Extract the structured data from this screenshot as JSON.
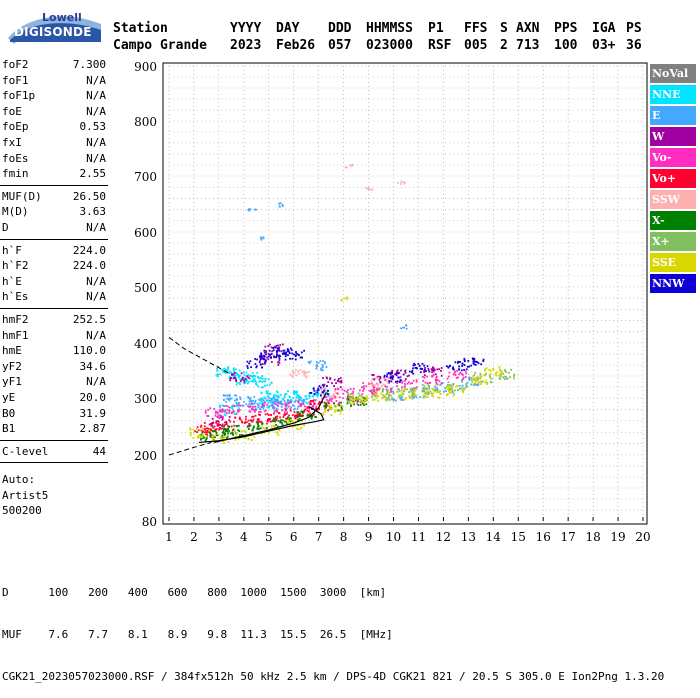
{
  "logo": {
    "line1": "Lowell",
    "line2": "DIGISONDE"
  },
  "header": {
    "row1": [
      "Station",
      "YYYY",
      "DAY",
      "DDD",
      "HHMMSS",
      "P1",
      "FFS",
      "S",
      "AXN",
      "PPS",
      "IGA",
      "PS"
    ],
    "row2": [
      "Campo Grande",
      "2023",
      "Feb26",
      "057",
      "023000",
      "RSF",
      "005",
      "2",
      "713",
      "100",
      "03+",
      "36"
    ]
  },
  "params": [
    {
      "name": "foF2",
      "value": "7.300"
    },
    {
      "name": "foF1",
      "value": "N/A"
    },
    {
      "name": "foF1p",
      "value": "N/A"
    },
    {
      "name": "foE",
      "value": "N/A"
    },
    {
      "name": "foEp",
      "value": "0.53"
    },
    {
      "name": "fxI",
      "value": "N/A"
    },
    {
      "name": "foEs",
      "value": "N/A"
    },
    {
      "name": "fmin",
      "value": "2.55"
    },
    {
      "name": "MUF(D)",
      "value": "26.50"
    },
    {
      "name": "M(D)",
      "value": "3.63"
    },
    {
      "name": "D",
      "value": "N/A"
    },
    {
      "name": "h`F",
      "value": "224.0"
    },
    {
      "name": "h`F2",
      "value": "224.0"
    },
    {
      "name": "h`E",
      "value": "N/A"
    },
    {
      "name": "h`Es",
      "value": "N/A"
    },
    {
      "name": "hmF2",
      "value": "252.5"
    },
    {
      "name": "hmF1",
      "value": "N/A"
    },
    {
      "name": "hmE",
      "value": "110.0"
    },
    {
      "name": "yF2",
      "value": "34.6"
    },
    {
      "name": "yF1",
      "value": "N/A"
    },
    {
      "name": "yE",
      "value": "20.0"
    },
    {
      "name": "B0",
      "value": "31.9"
    },
    {
      "name": "B1",
      "value": "2.87"
    },
    {
      "name": "C-level",
      "value": "44"
    }
  ],
  "auto": {
    "line1": "Auto:",
    "line2": "Artist5",
    "line3": "500200"
  },
  "legend": [
    {
      "label": "NoVal",
      "color": "#808080"
    },
    {
      "label": "NNE",
      "color": "#00e4ff"
    },
    {
      "label": "E",
      "color": "#44a8ff"
    },
    {
      "label": "W",
      "color": "#a000a0"
    },
    {
      "label": "Vo-",
      "color": "#ff2ec0"
    },
    {
      "label": "Vo+",
      "color": "#ff0030"
    },
    {
      "label": "SSW",
      "color": "#ffb0b0"
    },
    {
      "label": "X-",
      "color": "#008000"
    },
    {
      "label": "X+",
      "color": "#80c060"
    },
    {
      "label": "SSE",
      "color": "#d8d800"
    },
    {
      "label": "NNW",
      "color": "#1000d8"
    }
  ],
  "chart_data": {
    "type": "scatter",
    "xlabel": "",
    "ylabel": "",
    "xlim": [
      1,
      20
    ],
    "ylim": [
      80,
      900
    ],
    "x_ticks": [
      1,
      2,
      3,
      4,
      5,
      6,
      7,
      8,
      9,
      10,
      11,
      12,
      13,
      14,
      15,
      16,
      17,
      18,
      19,
      20
    ],
    "y_ticks": [
      80,
      200,
      300,
      400,
      500,
      600,
      700,
      800,
      900
    ],
    "grid": true,
    "series": [
      {
        "name": "NNE",
        "points": [
          [
            3.2,
            350
          ],
          [
            3.6,
            345
          ],
          [
            4.0,
            335
          ],
          [
            4.4,
            340
          ],
          [
            4.7,
            330
          ],
          [
            5.0,
            305
          ],
          [
            5.5,
            300
          ],
          [
            6.0,
            305
          ],
          [
            6.5,
            300
          ],
          [
            7.0,
            310
          ],
          [
            3.4,
            280
          ],
          [
            4.9,
            290
          ]
        ]
      },
      {
        "name": "E",
        "points": [
          [
            3.5,
            300
          ],
          [
            4.0,
            295
          ],
          [
            4.5,
            290
          ],
          [
            5.0,
            295
          ],
          [
            5.5,
            290
          ],
          [
            6.0,
            290
          ],
          [
            10.0,
            305
          ],
          [
            11.0,
            310
          ],
          [
            12.0,
            320
          ],
          [
            13.0,
            330
          ],
          [
            4.3,
            640
          ],
          [
            5.5,
            650
          ],
          [
            4.6,
            590
          ],
          [
            6.9,
            360
          ],
          [
            10.4,
            430
          ]
        ]
      },
      {
        "name": "W",
        "points": [
          [
            3.8,
            340
          ],
          [
            5.0,
            370
          ],
          [
            5.2,
            390
          ],
          [
            9.5,
            335
          ],
          [
            10.2,
            345
          ],
          [
            11.5,
            350
          ],
          [
            3.0,
            260
          ],
          [
            7.5,
            330
          ]
        ]
      },
      {
        "name": "Vo-",
        "points": [
          [
            2.8,
            275
          ],
          [
            3.5,
            280
          ],
          [
            4.5,
            285
          ],
          [
            5.5,
            285
          ],
          [
            6.5,
            290
          ],
          [
            7.5,
            295
          ],
          [
            8.5,
            300
          ],
          [
            9.5,
            315
          ],
          [
            10.5,
            325
          ],
          [
            11.5,
            335
          ],
          [
            12.5,
            345
          ],
          [
            8.0,
            310
          ],
          [
            9.0,
            320
          ]
        ]
      },
      {
        "name": "Vo+",
        "points": [
          [
            2.4,
            250
          ],
          [
            2.8,
            245
          ],
          [
            3.2,
            255
          ],
          [
            4.0,
            260
          ],
          [
            4.6,
            265
          ],
          [
            5.3,
            268
          ],
          [
            6.0,
            272
          ],
          [
            6.5,
            278
          ],
          [
            7.0,
            288
          ]
        ]
      },
      {
        "name": "SSW",
        "points": [
          [
            7.4,
            310
          ],
          [
            8.2,
            720
          ],
          [
            9.0,
            680
          ],
          [
            10.3,
            690
          ],
          [
            9.4,
            330
          ],
          [
            6.2,
            345
          ]
        ]
      },
      {
        "name": "X-",
        "points": [
          [
            2.5,
            235
          ],
          [
            3.0,
            240
          ],
          [
            3.5,
            245
          ],
          [
            4.5,
            252
          ],
          [
            5.5,
            260
          ],
          [
            6.5,
            270
          ],
          [
            7.5,
            285
          ],
          [
            8.5,
            295
          ]
        ]
      },
      {
        "name": "X+",
        "points": [
          [
            8.5,
            302
          ],
          [
            9.5,
            310
          ],
          [
            10.5,
            312
          ],
          [
            11.5,
            318
          ],
          [
            12.5,
            322
          ],
          [
            13.5,
            338
          ],
          [
            14.5,
            345
          ]
        ]
      },
      {
        "name": "SSE",
        "points": [
          [
            2.2,
            240
          ],
          [
            3.0,
            230
          ],
          [
            4.0,
            235
          ],
          [
            5.0,
            245
          ],
          [
            6.0,
            255
          ],
          [
            7.5,
            280
          ],
          [
            8.5,
            300
          ],
          [
            9.5,
            305
          ],
          [
            10.5,
            308
          ],
          [
            11.5,
            310
          ],
          [
            12.5,
            315
          ],
          [
            13.5,
            335
          ],
          [
            14.0,
            350
          ],
          [
            8.0,
            480
          ]
        ]
      },
      {
        "name": "NNW",
        "points": [
          [
            4.5,
            365
          ],
          [
            5.0,
            380
          ],
          [
            5.5,
            385
          ],
          [
            6.0,
            380
          ],
          [
            10.0,
            340
          ],
          [
            11.0,
            355
          ],
          [
            12.5,
            360
          ],
          [
            13.2,
            365
          ],
          [
            7.0,
            315
          ]
        ]
      }
    ]
  },
  "footer": {
    "line1": "D      100   200   400   600   800  1000  1500  3000  [km]",
    "line2": "MUF    7.6   7.7   8.1   8.9   9.8  11.3  15.5  26.5  [MHz]",
    "line3": "CGK21_2023057023000.RSF / 384fx512h 50 kHz 2.5 km / DPS-4D CGK21 821 / 20.5 S 305.0 E Ion2Png 1.3.20"
  }
}
